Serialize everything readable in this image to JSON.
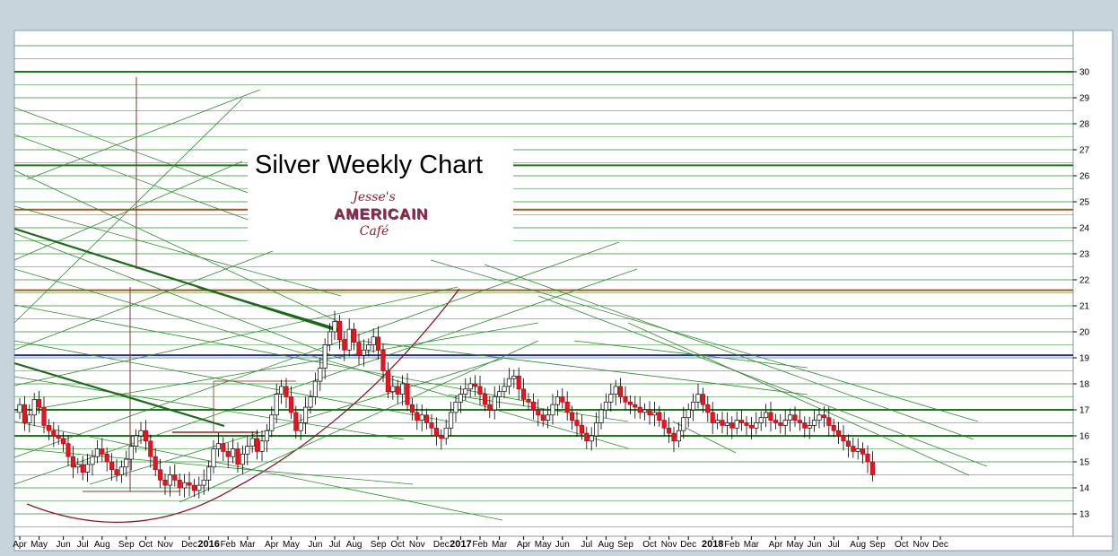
{
  "chart_data": {
    "type": "candlestick",
    "title": "Silver Weekly Chart",
    "logo_text": [
      "Jesse's",
      "AMERICAIN",
      "Café"
    ],
    "ylim": [
      12.6,
      31.4
    ],
    "y_ticks": [
      13,
      14,
      15,
      16,
      17,
      18,
      19,
      20,
      21,
      22,
      23,
      24,
      25,
      26,
      27,
      28,
      29,
      30
    ],
    "x_ticks": [
      {
        "label": "Apr",
        "week": 0
      },
      {
        "label": "May",
        "week": 4
      },
      {
        "label": "Jun",
        "week": 9
      },
      {
        "label": "Jul",
        "week": 13
      },
      {
        "label": "Aug",
        "week": 17
      },
      {
        "label": "Sep",
        "week": 22
      },
      {
        "label": "Oct",
        "week": 26
      },
      {
        "label": "Nov",
        "week": 30
      },
      {
        "label": "Dec",
        "week": 35
      },
      {
        "label": "2016",
        "week": 39,
        "year": true
      },
      {
        "label": "Feb",
        "week": 43
      },
      {
        "label": "Mar",
        "week": 47
      },
      {
        "label": "Apr",
        "week": 52
      },
      {
        "label": "May",
        "week": 56
      },
      {
        "label": "Jun",
        "week": 61
      },
      {
        "label": "Jul",
        "week": 65
      },
      {
        "label": "Aug",
        "week": 69
      },
      {
        "label": "Sep",
        "week": 74
      },
      {
        "label": "Oct",
        "week": 78
      },
      {
        "label": "Nov",
        "week": 82
      },
      {
        "label": "Dec",
        "week": 87
      },
      {
        "label": "2017",
        "week": 91,
        "year": true
      },
      {
        "label": "Feb",
        "week": 95
      },
      {
        "label": "Mar",
        "week": 99
      },
      {
        "label": "Apr",
        "week": 104
      },
      {
        "label": "May",
        "week": 108
      },
      {
        "label": "Jun",
        "week": 112
      },
      {
        "label": "Jul",
        "week": 117
      },
      {
        "label": "Aug",
        "week": 121
      },
      {
        "label": "Sep",
        "week": 125
      },
      {
        "label": "Oct",
        "week": 130
      },
      {
        "label": "Nov",
        "week": 134
      },
      {
        "label": "Dec",
        "week": 138
      },
      {
        "label": "2018",
        "week": 143,
        "year": true
      },
      {
        "label": "Feb",
        "week": 147
      },
      {
        "label": "Mar",
        "week": 151
      },
      {
        "label": "Apr",
        "week": 156
      },
      {
        "label": "May",
        "week": 160
      },
      {
        "label": "Jun",
        "week": 164
      },
      {
        "label": "Jul",
        "week": 168
      },
      {
        "label": "Aug",
        "week": 173
      },
      {
        "label": "Sep",
        "week": 177
      },
      {
        "label": "Oct",
        "week": 182
      },
      {
        "label": "Nov",
        "week": 186
      },
      {
        "label": "Dec",
        "week": 190
      }
    ],
    "closes": [
      17.2,
      16.5,
      16.8,
      17.4,
      17.1,
      16.4,
      16.2,
      16.0,
      15.9,
      15.7,
      15.2,
      14.8,
      14.9,
      14.6,
      14.9,
      15.2,
      15.5,
      15.3,
      15.0,
      14.7,
      14.5,
      14.8,
      15.1,
      15.6,
      16.0,
      16.2,
      15.8,
      15.2,
      14.7,
      14.3,
      14.1,
      14.5,
      14.3,
      14.0,
      14.2,
      14.1,
      13.9,
      14.1,
      14.3,
      14.8,
      15.5,
      15.7,
      15.4,
      15.2,
      15.5,
      14.9,
      15.3,
      15.6,
      15.9,
      15.4,
      15.8,
      16.2,
      16.8,
      17.6,
      17.9,
      17.5,
      16.9,
      16.2,
      16.5,
      17.1,
      17.5,
      18.1,
      18.6,
      19.5,
      20.0,
      20.4,
      19.7,
      19.3,
      20.1,
      19.6,
      19.1,
      19.3,
      19.5,
      19.8,
      19.3,
      18.5,
      17.7,
      17.9,
      17.6,
      18.0,
      17.2,
      16.9,
      16.6,
      16.8,
      16.5,
      16.3,
      16.0,
      15.9,
      16.3,
      16.9,
      17.3,
      17.6,
      17.8,
      18.0,
      17.9,
      17.6,
      17.2,
      17.0,
      17.5,
      17.7,
      17.9,
      18.2,
      18.3,
      17.8,
      17.4,
      17.3,
      17.0,
      16.8,
      16.6,
      16.8,
      17.2,
      17.5,
      17.3,
      16.9,
      16.6,
      16.4,
      16.1,
      15.8,
      16.0,
      16.5,
      17.0,
      17.3,
      17.6,
      17.9,
      17.5,
      17.3,
      17.2,
      17.1,
      16.9,
      17.0,
      16.8,
      16.9,
      16.6,
      16.3,
      16.1,
      15.8,
      16.2,
      16.7,
      17.0,
      17.3,
      17.6,
      17.2,
      16.9,
      16.5,
      16.6,
      16.4,
      16.5,
      16.3,
      16.6,
      16.5,
      16.4,
      16.3,
      16.5,
      16.7,
      16.9,
      16.6,
      16.5,
      16.4,
      16.6,
      16.8,
      16.6,
      16.5,
      16.3,
      16.4,
      16.6,
      16.8,
      16.7,
      16.4,
      16.2,
      16.0,
      15.8,
      15.6,
      15.4,
      15.5,
      15.3,
      15.0,
      14.5
    ]
  }
}
